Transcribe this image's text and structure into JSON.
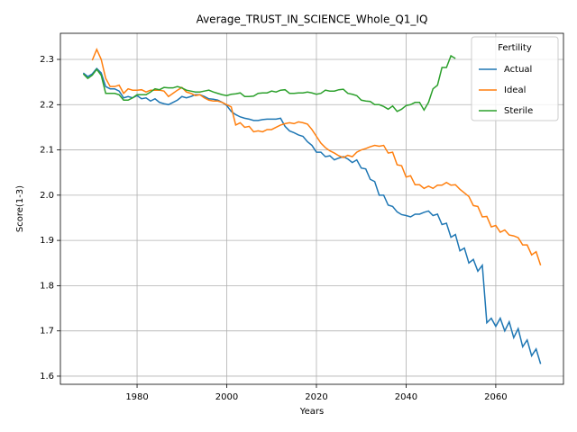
{
  "chart_data": {
    "type": "line",
    "title": "Average_TRUST_IN_SCIENCE_Whole_Q1_IQ",
    "xlabel": "Years",
    "ylabel": "Score(1-3)",
    "legend_title": "Fertility",
    "legend": "upper right",
    "grid": true,
    "xlim": [
      1962.9,
      2075.1
    ],
    "ylim": [
      1.582,
      2.3577
    ],
    "xticks": [
      1980,
      2000,
      2020,
      2040,
      2060
    ],
    "yticks": [
      1.6,
      1.7,
      1.8,
      1.9,
      {
        "value": 2,
        "label": "2.0"
      },
      2.1,
      2.2,
      2.3
    ],
    "x": [
      1968,
      1969,
      1970,
      1971,
      1972,
      1973,
      1974,
      1975,
      1976,
      1977,
      1978,
      1979,
      1980,
      1981,
      1982,
      1983,
      1984,
      1985,
      1986,
      1987,
      1988,
      1989,
      1990,
      1991,
      1992,
      1993,
      1994,
      1995,
      1996,
      1997,
      1998,
      1999,
      2000,
      2001,
      2002,
      2003,
      2004,
      2005,
      2006,
      2007,
      2008,
      2009,
      2010,
      2011,
      2012,
      2013,
      2014,
      2015,
      2016,
      2017,
      2018,
      2019,
      2020,
      2021,
      2022,
      2023,
      2024,
      2025,
      2026,
      2027,
      2028,
      2029,
      2030,
      2031,
      2032,
      2033,
      2034,
      2035,
      2036,
      2037,
      2038,
      2039,
      2040,
      2041,
      2042,
      2043,
      2044,
      2045,
      2046,
      2047,
      2048,
      2049,
      2050,
      2051,
      2052,
      2053,
      2054,
      2055,
      2056,
      2057,
      2058,
      2059,
      2060,
      2061,
      2062,
      2063,
      2064,
      2065,
      2066,
      2067,
      2068,
      2069,
      2070
    ],
    "series": [
      {
        "name": "Actual",
        "color": "#1f77b4",
        "values": [
          2.27,
          2.262,
          2.268,
          2.28,
          2.27,
          2.24,
          2.235,
          2.235,
          2.23,
          2.215,
          2.218,
          2.215,
          2.22,
          2.213,
          2.215,
          2.208,
          2.213,
          2.205,
          2.202,
          2.2,
          2.205,
          2.21,
          2.218,
          2.215,
          2.218,
          2.222,
          2.222,
          2.218,
          2.213,
          2.212,
          2.21,
          2.205,
          2.198,
          2.185,
          2.178,
          2.173,
          2.17,
          2.168,
          2.165,
          2.165,
          2.167,
          2.168,
          2.168,
          2.168,
          2.17,
          2.152,
          2.142,
          2.138,
          2.133,
          2.13,
          2.118,
          2.11,
          2.095,
          2.095,
          2.085,
          2.087,
          2.078,
          2.082,
          2.085,
          2.08,
          2.072,
          2.078,
          2.06,
          2.058,
          2.035,
          2.03,
          2.0,
          2.0,
          1.978,
          1.975,
          1.963,
          1.957,
          1.955,
          1.952,
          1.958,
          1.958,
          1.962,
          1.965,
          1.955,
          1.958,
          1.935,
          1.938,
          1.907,
          1.913,
          1.877,
          1.883,
          1.85,
          1.858,
          1.832,
          1.845,
          1.718,
          1.728,
          1.71,
          1.728,
          1.7,
          1.72,
          1.685,
          1.705,
          1.665,
          1.68,
          1.645,
          1.66,
          1.627
        ]
      },
      {
        "name": "Ideal",
        "color": "#ff7f0e",
        "values": [
          null,
          null,
          2.298,
          2.322,
          2.3,
          2.258,
          2.24,
          2.24,
          2.243,
          2.225,
          2.235,
          2.232,
          2.232,
          2.233,
          2.228,
          2.232,
          2.232,
          2.232,
          2.23,
          2.218,
          2.225,
          2.232,
          2.238,
          2.228,
          2.225,
          2.22,
          2.222,
          2.215,
          2.21,
          2.208,
          2.208,
          2.205,
          2.2,
          2.195,
          2.155,
          2.16,
          2.15,
          2.152,
          2.14,
          2.142,
          2.14,
          2.145,
          2.145,
          2.15,
          2.155,
          2.158,
          2.16,
          2.158,
          2.162,
          2.16,
          2.157,
          2.145,
          2.13,
          2.115,
          2.105,
          2.098,
          2.093,
          2.087,
          2.083,
          2.088,
          2.085,
          2.095,
          2.1,
          2.103,
          2.107,
          2.11,
          2.108,
          2.11,
          2.093,
          2.095,
          2.067,
          2.065,
          2.04,
          2.043,
          2.023,
          2.023,
          2.015,
          2.02,
          2.015,
          2.022,
          2.022,
          2.028,
          2.022,
          2.023,
          2.013,
          2.005,
          1.997,
          1.977,
          1.975,
          1.952,
          1.953,
          1.93,
          1.933,
          1.918,
          1.923,
          1.912,
          1.91,
          1.906,
          1.89,
          1.89,
          1.868,
          1.875,
          1.845
        ]
      },
      {
        "name": "Sterile",
        "color": "#2ca02c",
        "values": [
          2.268,
          2.258,
          2.265,
          2.278,
          2.265,
          2.225,
          2.225,
          2.225,
          2.222,
          2.21,
          2.21,
          2.215,
          2.222,
          2.222,
          2.222,
          2.228,
          2.235,
          2.233,
          2.238,
          2.237,
          2.237,
          2.24,
          2.237,
          2.232,
          2.23,
          2.228,
          2.228,
          2.23,
          2.232,
          2.228,
          2.225,
          2.222,
          2.22,
          2.223,
          2.224,
          2.226,
          2.218,
          2.218,
          2.219,
          2.225,
          2.226,
          2.226,
          2.23,
          2.228,
          2.232,
          2.233,
          2.225,
          2.225,
          2.226,
          2.226,
          2.228,
          2.226,
          2.223,
          2.225,
          2.232,
          2.23,
          2.23,
          2.233,
          2.234,
          2.225,
          2.223,
          2.22,
          2.21,
          2.208,
          2.207,
          2.2,
          2.2,
          2.196,
          2.19,
          2.197,
          2.185,
          2.19,
          2.198,
          2.2,
          2.205,
          2.205,
          2.188,
          2.205,
          2.235,
          2.243,
          2.282,
          2.282,
          2.308,
          2.302,
          null,
          null,
          null,
          null,
          null,
          null,
          null,
          null,
          null,
          null,
          null,
          null,
          null,
          null,
          null,
          null,
          null,
          null,
          null
        ]
      }
    ]
  }
}
